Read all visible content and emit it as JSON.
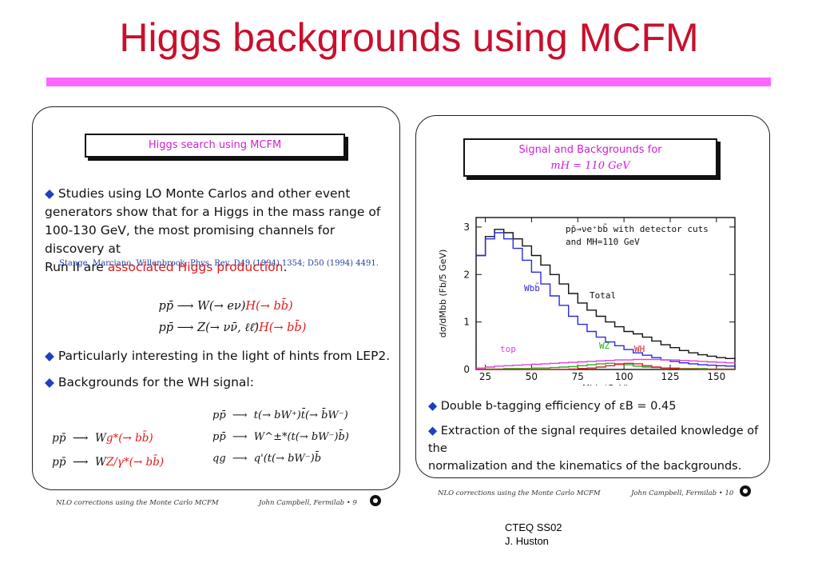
{
  "slide": {
    "title": "Higgs backgrounds using MCFM",
    "footer_line1": "CTEQ SS02",
    "footer_line2": "J. Huston"
  },
  "left": {
    "header": "Higgs search using MCFM",
    "bullet1_a": "Studies using LO Monte Carlos and other event",
    "bullet1_b": "generators show that for a Higgs in the mass range of",
    "bullet1_c": "100-130 GeV, the most promising channels for discovery at",
    "bullet1_d": "Run II are ",
    "bullet1_red": "associated Higgs production",
    "bullet1_end": ".",
    "reference": "Stange, Marciano, Willenbrock: Phys. Rev. D49 (1994) 1354; D50 (1994) 4491.",
    "eq1_black": "pp̄ ⟶ W(→ eν)",
    "eq1_red": "H(→ bb̄)",
    "eq2_black": "pp̄ ⟶ Z(→ νν̄, ℓℓ̄)",
    "eq2_red": "H(→ bb̄)",
    "bullet2": "Particularly interesting in the light of hints from LEP2.",
    "bullet3": "Backgrounds for the WH signal:",
    "bg1_black": "pp̄  ⟶  W",
    "bg1_red": "g*(→ bb̄)",
    "bg2_black": "pp̄  ⟶  W",
    "bg2_red": "Z/γ*(→ bb̄)",
    "bg3": "pp̄  ⟶  t(→ bW⁺)t̄(→ b̄W⁻)",
    "bg4": "pp̄  ⟶  W^±*(t(→ bW⁻)b̄)",
    "bg5": "qg  ⟶  q'(t(→ bW⁻)b̄",
    "footer_text": "NLO corrections using the Monte Carlo MCFM",
    "footer_author": "John Campbell, Fermilab • 9"
  },
  "right": {
    "header_line1": "Signal and Backgrounds for",
    "header_line2": "mH = 110 GeV",
    "bullet1": "Double b-tagging efficiency of εB = 0.45",
    "bullet2_a": "Extraction of the signal requires detailed knowledge of the",
    "bullet2_b": "normalization and the kinematics of the backgrounds.",
    "footer_text": "NLO corrections using the Monte Carlo MCFM",
    "footer_author": "John Campbell, Fermilab • 10"
  },
  "chart_data": {
    "type": "line",
    "annotation_line1": "pp̄→νe⁺bb̄  with detector cuts",
    "annotation_line2": "and MH=110 GeV",
    "xlabel": "Mbb (GeV)",
    "ylabel": "dσ/dMbb (Fb/5 GeV)",
    "xlim": [
      20,
      160
    ],
    "ylim": [
      0,
      3.2
    ],
    "xticks": [
      "25",
      "50",
      "75",
      "100",
      "125",
      "150"
    ],
    "yticks": [
      "0",
      "1",
      "2",
      "3"
    ],
    "x": [
      20,
      25,
      30,
      35,
      40,
      45,
      50,
      55,
      60,
      65,
      70,
      75,
      80,
      85,
      90,
      95,
      100,
      105,
      110,
      115,
      120,
      125,
      130,
      135,
      140,
      145,
      150,
      155,
      160
    ],
    "series": [
      {
        "name": "Total",
        "color": "#111111",
        "values": [
          2.4,
          2.8,
          2.95,
          2.88,
          2.75,
          2.6,
          2.4,
          2.2,
          2.0,
          1.8,
          1.6,
          1.4,
          1.25,
          1.12,
          1.0,
          0.9,
          0.8,
          0.75,
          0.68,
          0.6,
          0.52,
          0.46,
          0.4,
          0.35,
          0.31,
          0.28,
          0.25,
          0.23,
          0.22
        ]
      },
      {
        "name": "Wbb̄",
        "color": "#2a2ae0",
        "values": [
          2.4,
          2.75,
          2.88,
          2.75,
          2.55,
          2.3,
          2.05,
          1.8,
          1.55,
          1.35,
          1.12,
          0.95,
          0.8,
          0.68,
          0.58,
          0.5,
          0.42,
          0.35,
          0.3,
          0.25,
          0.2,
          0.17,
          0.14,
          0.12,
          0.1,
          0.09,
          0.08,
          0.07,
          0.06
        ]
      },
      {
        "name": "top",
        "color": "#e040e0",
        "values": [
          0.03,
          0.05,
          0.07,
          0.08,
          0.09,
          0.1,
          0.11,
          0.12,
          0.13,
          0.14,
          0.15,
          0.16,
          0.17,
          0.18,
          0.19,
          0.2,
          0.2,
          0.21,
          0.21,
          0.21,
          0.2,
          0.2,
          0.19,
          0.18,
          0.17,
          0.16,
          0.15,
          0.14,
          0.13
        ]
      },
      {
        "name": "WZ",
        "color": "#20b020",
        "values": [
          0.0,
          0.01,
          0.01,
          0.02,
          0.02,
          0.02,
          0.03,
          0.03,
          0.04,
          0.05,
          0.06,
          0.08,
          0.1,
          0.12,
          0.13,
          0.12,
          0.1,
          0.07,
          0.05,
          0.04,
          0.03,
          0.03,
          0.02,
          0.02,
          0.02,
          0.01,
          0.01,
          0.01,
          0.01
        ]
      },
      {
        "name": "WH",
        "color": "#e02020",
        "values": [
          0.0,
          0.0,
          0.0,
          0.0,
          0.0,
          0.0,
          0.0,
          0.0,
          0.0,
          0.0,
          0.01,
          0.02,
          0.03,
          0.05,
          0.08,
          0.11,
          0.13,
          0.12,
          0.08,
          0.05,
          0.03,
          0.02,
          0.01,
          0.01,
          0.0,
          0.0,
          0.0,
          0.0,
          0.0
        ]
      }
    ],
    "labels": {
      "total": "Total",
      "wbb": "Wbb̄",
      "top": "top",
      "wz": "WZ",
      "wh": "WH"
    }
  }
}
